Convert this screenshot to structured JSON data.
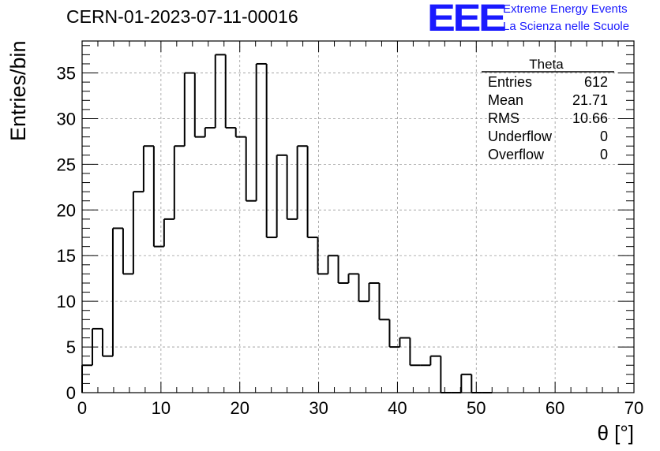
{
  "header": {
    "run_title": "CERN-01-2023-07-11-00016",
    "logo_text": "EEE",
    "logo_line1": "Extreme Energy Events",
    "logo_line2": "La Scienza nelle Scuole",
    "logo_color": "#1a1aff"
  },
  "stats_box": {
    "title": "Theta",
    "rows": [
      {
        "label": "Entries",
        "value": "612"
      },
      {
        "label": "Mean",
        "value": "21.71"
      },
      {
        "label": "RMS",
        "value": "10.66"
      },
      {
        "label": "Underflow",
        "value": "0"
      },
      {
        "label": "Overflow",
        "value": "0"
      }
    ]
  },
  "chart_data": {
    "type": "histogram",
    "xlabel": "θ [°]",
    "ylabel": "Entries/bin",
    "xlim": [
      0,
      70
    ],
    "ylim": [
      0,
      38.5
    ],
    "bin_width": 1.3,
    "x_ticks": [
      0,
      10,
      20,
      30,
      40,
      50,
      60,
      70
    ],
    "y_ticks": [
      0,
      5,
      10,
      15,
      20,
      25,
      30,
      35
    ],
    "grid": true,
    "bin_edges": [
      0,
      1.3,
      2.6,
      3.9,
      5.2,
      6.5,
      7.8,
      9.1,
      10.4,
      11.7,
      13,
      14.3,
      15.6,
      16.9,
      18.2,
      19.5,
      20.8,
      22.1,
      23.4,
      24.7,
      26,
      27.3,
      28.6,
      29.9,
      31.2,
      32.5,
      33.8,
      35.1,
      36.4,
      37.7,
      39,
      40.3,
      41.6,
      42.9,
      44.2,
      45.5,
      46.8,
      48.1,
      49.4,
      50.7,
      52
    ],
    "values": [
      3,
      7,
      4,
      18,
      13,
      22,
      27,
      16,
      19,
      27,
      35,
      28,
      29,
      37,
      29,
      28,
      21,
      36,
      17,
      26,
      19,
      27,
      17,
      13,
      15,
      12,
      13,
      10,
      12,
      8,
      5,
      6,
      3,
      3,
      4,
      0,
      0,
      2,
      0,
      0
    ],
    "line_color": "#000000",
    "grid_color": "#9a9a9a"
  }
}
